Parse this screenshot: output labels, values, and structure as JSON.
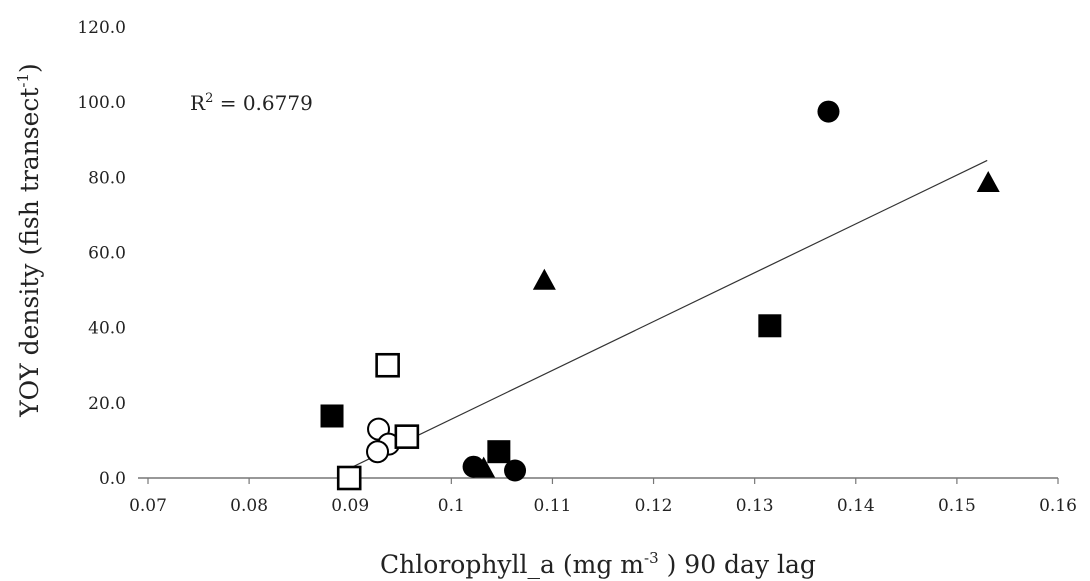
{
  "chart_data": {
    "type": "scatter",
    "xlabel": {
      "main": "Chlorophyll_a (mg m",
      "sup": "-3",
      "tail": " ) 90 day lag"
    },
    "ylabel": {
      "main": "YOY density (fish transect",
      "sup": "-1",
      "tail": ")"
    },
    "xlim": [
      0.07,
      0.16
    ],
    "ylim": [
      0,
      120
    ],
    "x_ticks": [
      0.07,
      0.08,
      0.09,
      0.1,
      0.11,
      0.12,
      0.13,
      0.14,
      0.15,
      0.16
    ],
    "x_tick_labels": [
      "0.07",
      "0.08",
      "0.09",
      "0.1",
      "0.11",
      "0.12",
      "0.13",
      "0.14",
      "0.15",
      "0.16"
    ],
    "y_ticks": [
      0,
      20,
      40,
      60,
      80,
      100,
      120
    ],
    "y_tick_labels": [
      "0.0",
      "20.0",
      "40.0",
      "60.0",
      "80.0",
      "100.0",
      "120.0"
    ],
    "grid": false,
    "annotation": {
      "prefix": "R",
      "sup": "2",
      "rest": " = 0.6779"
    },
    "trendline": {
      "x": [
        0.0895,
        0.153
      ],
      "y": [
        2.0,
        84.5
      ]
    },
    "series": [
      {
        "marker": "filled-circle",
        "points": [
          {
            "x": 0.1373,
            "y": 97.5
          },
          {
            "x": 0.1022,
            "y": 3.0
          },
          {
            "x": 0.1063,
            "y": 2.0
          }
        ]
      },
      {
        "marker": "filled-triangle",
        "points": [
          {
            "x": 0.1531,
            "y": 78.5
          },
          {
            "x": 0.1092,
            "y": 52.5
          },
          {
            "x": 0.1032,
            "y": 2.5
          }
        ]
      },
      {
        "marker": "filled-square",
        "points": [
          {
            "x": 0.1315,
            "y": 40.5
          },
          {
            "x": 0.0882,
            "y": 16.5
          },
          {
            "x": 0.1047,
            "y": 7.0
          }
        ]
      },
      {
        "marker": "open-circle",
        "points": [
          {
            "x": 0.0928,
            "y": 13.0
          },
          {
            "x": 0.0938,
            "y": 9.0
          },
          {
            "x": 0.0927,
            "y": 7.0
          }
        ]
      },
      {
        "marker": "open-square",
        "points": [
          {
            "x": 0.0937,
            "y": 30.0
          },
          {
            "x": 0.0956,
            "y": 11.0
          },
          {
            "x": 0.0899,
            "y": 0.0
          }
        ]
      }
    ]
  }
}
